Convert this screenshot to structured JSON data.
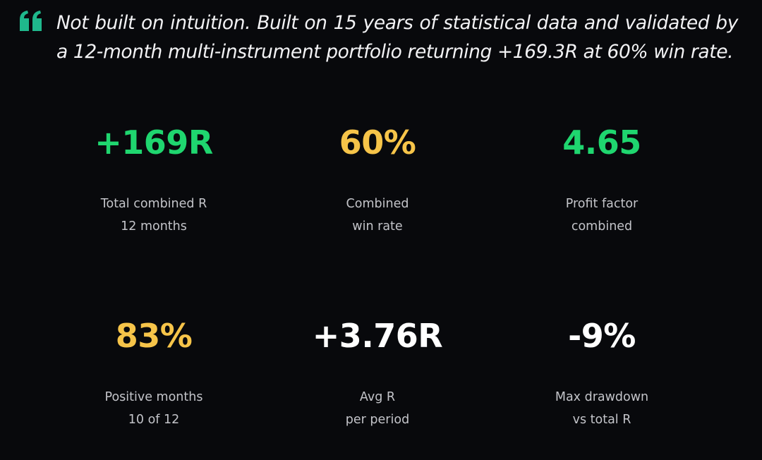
{
  "quote": {
    "icon": "quote-icon",
    "text": "Not built on intuition. Built on 15 years of statistical data and validated by a 12-month multi-instrument portfolio returning +169.3R at 60% win rate."
  },
  "colors": {
    "green": "#1fd66f",
    "yellow": "#f6c449",
    "white": "#ffffff",
    "accent_quote": "#1fb88c"
  },
  "stats": [
    {
      "value": "+169R",
      "label": "Total combined R",
      "sub": "12 months",
      "color": "#1fd66f"
    },
    {
      "value": "60%",
      "label": "Combined",
      "sub": "win rate",
      "color": "#f6c449"
    },
    {
      "value": "4.65",
      "label": "Profit factor",
      "sub": "combined",
      "color": "#1fd66f"
    },
    {
      "value": "83%",
      "label": "Positive months",
      "sub": "10 of 12",
      "color": "#f6c449"
    },
    {
      "value": "+3.76R",
      "label": "Avg R",
      "sub": "per period",
      "color": "#ffffff"
    },
    {
      "value": "-9%",
      "label": "Max drawdown",
      "sub": "vs total R",
      "color": "#ffffff"
    }
  ]
}
